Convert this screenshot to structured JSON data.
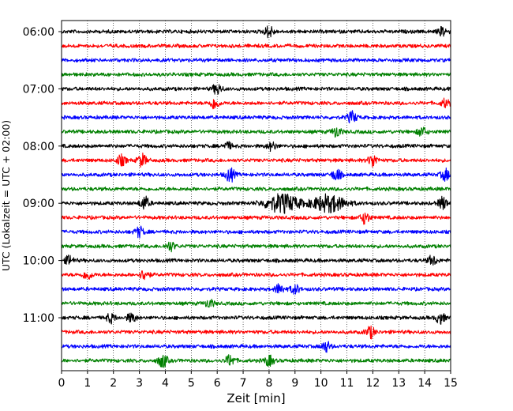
{
  "chart_data": {
    "type": "line",
    "subtype": "helicorder",
    "xlabel": "Zeit  [min]",
    "ylabel": "UTC (Lokalzeit = UTC + 02:00)",
    "xlim": [
      0,
      15
    ],
    "x_ticks": [
      0,
      1,
      2,
      3,
      4,
      5,
      6,
      7,
      8,
      9,
      10,
      11,
      12,
      13,
      14,
      15
    ],
    "x_tick_labels": [
      "0",
      "1",
      "2",
      "3",
      "4",
      "5",
      "6",
      "7",
      "8",
      "9",
      "10",
      "11",
      "12",
      "13",
      "14",
      "15"
    ],
    "row_interval_minutes": 15,
    "rows": 24,
    "y_tick_labels": [
      "06:00",
      "07:00",
      "08:00",
      "09:00",
      "10:00",
      "11:00"
    ],
    "y_tick_rows": [
      0,
      4,
      8,
      12,
      16,
      20
    ],
    "trace_color_cycle": [
      "#000000",
      "#ff0000",
      "#0000ff",
      "#008000"
    ],
    "vertical_gridlines": "dotted",
    "events": [
      {
        "row": 0,
        "minute": 8.0,
        "amp": 1.0
      },
      {
        "row": 0,
        "minute": 14.7,
        "amp": 0.8
      },
      {
        "row": 4,
        "minute": 6.0,
        "amp": 0.9
      },
      {
        "row": 5,
        "minute": 5.9,
        "amp": 1.0
      },
      {
        "row": 5,
        "minute": 14.8,
        "amp": 0.7
      },
      {
        "row": 6,
        "minute": 11.2,
        "amp": 1.0
      },
      {
        "row": 7,
        "minute": 10.6,
        "amp": 0.9
      },
      {
        "row": 7,
        "minute": 13.9,
        "amp": 0.8
      },
      {
        "row": 8,
        "minute": 6.4,
        "amp": 0.6
      },
      {
        "row": 8,
        "minute": 8.1,
        "amp": 0.7
      },
      {
        "row": 9,
        "minute": 2.3,
        "amp": 0.9
      },
      {
        "row": 9,
        "minute": 3.1,
        "amp": 1.1
      },
      {
        "row": 9,
        "minute": 12.0,
        "amp": 1.1
      },
      {
        "row": 10,
        "minute": 6.5,
        "amp": 1.2
      },
      {
        "row": 10,
        "minute": 10.6,
        "amp": 1.0
      },
      {
        "row": 10,
        "minute": 14.8,
        "amp": 1.0
      },
      {
        "row": 12,
        "minute": 3.2,
        "amp": 1.2
      },
      {
        "row": 12,
        "minute": 8.5,
        "amp": 1.6
      },
      {
        "row": 12,
        "minute": 10.3,
        "amp": 1.5
      },
      {
        "row": 12,
        "minute": 14.7,
        "amp": 1.1
      },
      {
        "row": 13,
        "minute": 11.7,
        "amp": 1.0
      },
      {
        "row": 14,
        "minute": 3.0,
        "amp": 0.9
      },
      {
        "row": 15,
        "minute": 4.2,
        "amp": 0.8
      },
      {
        "row": 16,
        "minute": 0.3,
        "amp": 0.8
      },
      {
        "row": 16,
        "minute": 14.3,
        "amp": 0.8
      },
      {
        "row": 17,
        "minute": 1.0,
        "amp": 0.8
      },
      {
        "row": 17,
        "minute": 3.2,
        "amp": 0.9
      },
      {
        "row": 18,
        "minute": 8.4,
        "amp": 0.9
      },
      {
        "row": 18,
        "minute": 9.0,
        "amp": 0.8
      },
      {
        "row": 19,
        "minute": 5.7,
        "amp": 0.7
      },
      {
        "row": 20,
        "minute": 1.9,
        "amp": 0.8
      },
      {
        "row": 20,
        "minute": 2.7,
        "amp": 0.8
      },
      {
        "row": 20,
        "minute": 14.6,
        "amp": 1.0
      },
      {
        "row": 21,
        "minute": 11.9,
        "amp": 1.0
      },
      {
        "row": 22,
        "minute": 10.2,
        "amp": 0.9
      },
      {
        "row": 23,
        "minute": 3.9,
        "amp": 1.2
      },
      {
        "row": 23,
        "minute": 6.5,
        "amp": 1.0
      },
      {
        "row": 23,
        "minute": 8.0,
        "amp": 0.9
      }
    ]
  }
}
